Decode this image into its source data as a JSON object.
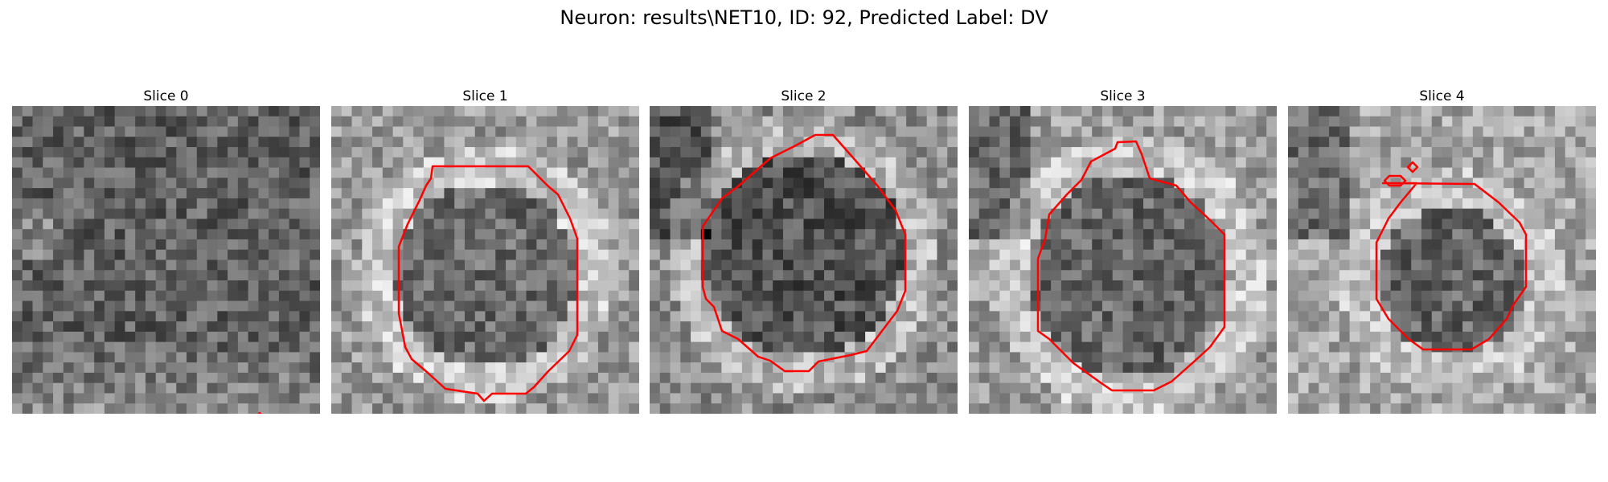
{
  "figure": {
    "title": "Neuron: results\\NET10, ID: 92, Predicted Label: DV"
  },
  "slices": [
    {
      "title": "Slice 0"
    },
    {
      "title": "Slice 1"
    },
    {
      "title": "Slice 2"
    },
    {
      "title": "Slice 3"
    },
    {
      "title": "Slice 4"
    }
  ],
  "colors": {
    "contour": "#ff0000"
  },
  "colormap": "gray"
}
